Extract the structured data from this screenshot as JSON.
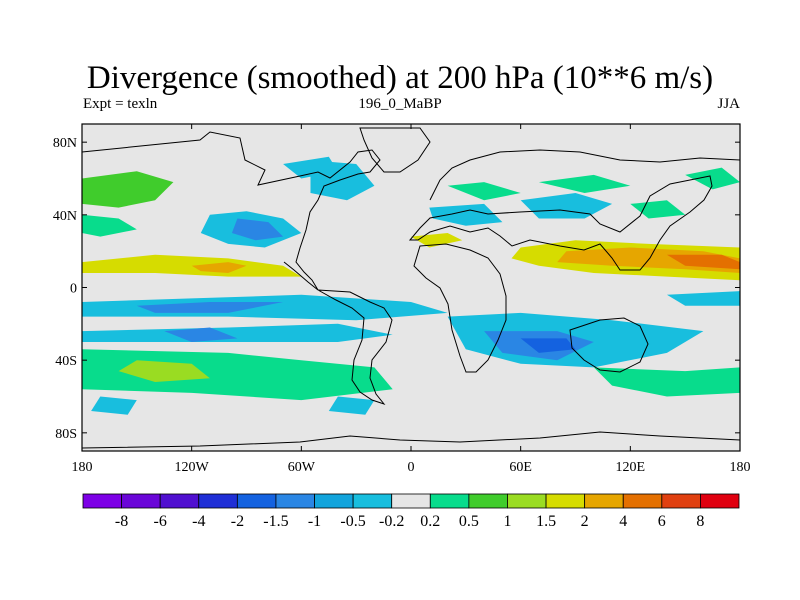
{
  "header": {
    "title": "Divergence (smoothed) at 200 hPa (10**6 m/s)",
    "left_label": "Expt = texln",
    "center_label": "196_0_MaBP",
    "right_label": "JJA"
  },
  "chart_data": {
    "type": "heatmap",
    "title": "Divergence (smoothed) at 200 hPa (10**6 m/s)",
    "projection": "cylindrical-equidistant",
    "xlim": [
      -180,
      180
    ],
    "ylim": [
      -90,
      90
    ],
    "x_ticks": [
      {
        "value": -180,
        "label": "180"
      },
      {
        "value": -120,
        "label": "120W"
      },
      {
        "value": -60,
        "label": "60W"
      },
      {
        "value": 0,
        "label": "0"
      },
      {
        "value": 60,
        "label": "60E"
      },
      {
        "value": 120,
        "label": "120E"
      },
      {
        "value": 180,
        "label": "180"
      }
    ],
    "y_ticks": [
      {
        "value": 80,
        "label": "80N"
      },
      {
        "value": 40,
        "label": "40N"
      },
      {
        "value": 0,
        "label": "0"
      },
      {
        "value": -40,
        "label": "40S"
      },
      {
        "value": -80,
        "label": "80S"
      }
    ],
    "colorbar": {
      "colors": [
        "#7d00e6",
        "#6a06d8",
        "#5010d0",
        "#1f2fd6",
        "#1462e0",
        "#2a86e4",
        "#12a4dc",
        "#18bede",
        "#e6e6e6",
        "#08dc8c",
        "#40cc2c",
        "#9adc22",
        "#d6dc00",
        "#e6a600",
        "#e47000",
        "#e04010",
        "#e00010"
      ],
      "levels": [
        "-8",
        "-6",
        "-4",
        "-2",
        "-1.5",
        "-1",
        "-0.5",
        "-0.2",
        "0.2",
        "0.5",
        "1",
        "1.5",
        "2",
        "4",
        "6",
        "8"
      ]
    },
    "features": [
      {
        "kind": "polygon",
        "bin": 12,
        "coords": [
          [
            -180,
            14
          ],
          [
            -140,
            18
          ],
          [
            -100,
            16
          ],
          [
            -70,
            12
          ],
          [
            -60,
            6
          ],
          [
            -100,
            6
          ],
          [
            -140,
            8
          ],
          [
            -180,
            8
          ]
        ]
      },
      {
        "kind": "polygon",
        "bin": 13,
        "coords": [
          [
            -120,
            12
          ],
          [
            -100,
            14
          ],
          [
            -90,
            12
          ],
          [
            -100,
            8
          ],
          [
            -115,
            9
          ]
        ]
      },
      {
        "kind": "polygon",
        "bin": 12,
        "coords": [
          [
            60,
            22
          ],
          [
            90,
            26
          ],
          [
            130,
            24
          ],
          [
            180,
            22
          ],
          [
            180,
            4
          ],
          [
            140,
            6
          ],
          [
            100,
            8
          ],
          [
            70,
            12
          ],
          [
            55,
            16
          ]
        ]
      },
      {
        "kind": "polygon",
        "bin": 13,
        "coords": [
          [
            85,
            20
          ],
          [
            120,
            22
          ],
          [
            160,
            20
          ],
          [
            180,
            16
          ],
          [
            180,
            8
          ],
          [
            150,
            10
          ],
          [
            110,
            12
          ],
          [
            80,
            14
          ]
        ]
      },
      {
        "kind": "polygon",
        "bin": 14,
        "coords": [
          [
            140,
            18
          ],
          [
            170,
            18
          ],
          [
            180,
            14
          ],
          [
            180,
            10
          ],
          [
            150,
            12
          ]
        ]
      },
      {
        "kind": "polygon",
        "bin": 12,
        "coords": [
          [
            0,
            28
          ],
          [
            20,
            30
          ],
          [
            28,
            26
          ],
          [
            10,
            22
          ]
        ]
      },
      {
        "kind": "polygon",
        "bin": 10,
        "coords": [
          [
            -180,
            60
          ],
          [
            -150,
            64
          ],
          [
            -130,
            58
          ],
          [
            -140,
            48
          ],
          [
            -160,
            44
          ],
          [
            -180,
            46
          ]
        ]
      },
      {
        "kind": "polygon",
        "bin": 9,
        "coords": [
          [
            -180,
            40
          ],
          [
            -160,
            38
          ],
          [
            -150,
            32
          ],
          [
            -170,
            28
          ],
          [
            -180,
            30
          ]
        ]
      },
      {
        "kind": "polygon",
        "bin": 9,
        "coords": [
          [
            20,
            56
          ],
          [
            40,
            58
          ],
          [
            60,
            52
          ],
          [
            40,
            48
          ]
        ]
      },
      {
        "kind": "polygon",
        "bin": 9,
        "coords": [
          [
            70,
            58
          ],
          [
            100,
            62
          ],
          [
            120,
            56
          ],
          [
            95,
            52
          ]
        ]
      },
      {
        "kind": "polygon",
        "bin": 9,
        "coords": [
          [
            120,
            46
          ],
          [
            140,
            48
          ],
          [
            150,
            40
          ],
          [
            130,
            38
          ]
        ]
      },
      {
        "kind": "polygon",
        "bin": 9,
        "coords": [
          [
            150,
            62
          ],
          [
            170,
            66
          ],
          [
            180,
            58
          ],
          [
            165,
            54
          ]
        ]
      },
      {
        "kind": "polygon",
        "bin": 7,
        "coords": [
          [
            -110,
            40
          ],
          [
            -90,
            42
          ],
          [
            -70,
            38
          ],
          [
            -60,
            30
          ],
          [
            -80,
            22
          ],
          [
            -100,
            24
          ],
          [
            -115,
            30
          ]
        ]
      },
      {
        "kind": "polygon",
        "bin": 5,
        "coords": [
          [
            -95,
            38
          ],
          [
            -78,
            36
          ],
          [
            -70,
            28
          ],
          [
            -85,
            26
          ],
          [
            -98,
            30
          ]
        ]
      },
      {
        "kind": "polygon",
        "bin": 7,
        "coords": [
          [
            -55,
            70
          ],
          [
            -30,
            68
          ],
          [
            -20,
            56
          ],
          [
            -35,
            48
          ],
          [
            -55,
            52
          ]
        ]
      },
      {
        "kind": "polygon",
        "bin": 7,
        "coords": [
          [
            -70,
            68
          ],
          [
            -45,
            72
          ],
          [
            -40,
            64
          ],
          [
            -60,
            60
          ]
        ]
      },
      {
        "kind": "polygon",
        "bin": 7,
        "coords": [
          [
            60,
            48
          ],
          [
            90,
            52
          ],
          [
            110,
            46
          ],
          [
            95,
            38
          ],
          [
            70,
            38
          ]
        ]
      },
      {
        "kind": "polygon",
        "bin": 7,
        "coords": [
          [
            10,
            44
          ],
          [
            40,
            46
          ],
          [
            50,
            36
          ],
          [
            30,
            34
          ],
          [
            12,
            38
          ]
        ]
      },
      {
        "kind": "polygon",
        "bin": 7,
        "coords": [
          [
            -180,
            -8
          ],
          [
            -120,
            -6
          ],
          [
            -60,
            -4
          ],
          [
            0,
            -8
          ],
          [
            20,
            -14
          ],
          [
            -30,
            -18
          ],
          [
            -100,
            -16
          ],
          [
            -180,
            -16
          ]
        ]
      },
      {
        "kind": "polygon",
        "bin": 5,
        "coords": [
          [
            -150,
            -10
          ],
          [
            -110,
            -8
          ],
          [
            -70,
            -8
          ],
          [
            -100,
            -14
          ],
          [
            -140,
            -14
          ]
        ]
      },
      {
        "kind": "polygon",
        "bin": 7,
        "coords": [
          [
            -180,
            -24
          ],
          [
            -100,
            -22
          ],
          [
            -40,
            -20
          ],
          [
            -10,
            -26
          ],
          [
            -40,
            -30
          ],
          [
            -120,
            -30
          ],
          [
            -180,
            -30
          ]
        ]
      },
      {
        "kind": "polygon",
        "bin": 7,
        "coords": [
          [
            20,
            -16
          ],
          [
            60,
            -14
          ],
          [
            110,
            -18
          ],
          [
            160,
            -24
          ],
          [
            140,
            -36
          ],
          [
            100,
            -44
          ],
          [
            60,
            -42
          ],
          [
            30,
            -34
          ]
        ]
      },
      {
        "kind": "polygon",
        "bin": 5,
        "coords": [
          [
            40,
            -24
          ],
          [
            80,
            -24
          ],
          [
            100,
            -30
          ],
          [
            80,
            -40
          ],
          [
            50,
            -36
          ]
        ]
      },
      {
        "kind": "polygon",
        "bin": 4,
        "coords": [
          [
            60,
            -28
          ],
          [
            85,
            -28
          ],
          [
            90,
            -34
          ],
          [
            70,
            -36
          ]
        ]
      },
      {
        "kind": "polygon",
        "bin": 7,
        "coords": [
          [
            140,
            -4
          ],
          [
            180,
            -2
          ],
          [
            180,
            -10
          ],
          [
            150,
            -10
          ]
        ]
      },
      {
        "kind": "polygon",
        "bin": 9,
        "coords": [
          [
            -180,
            -34
          ],
          [
            -100,
            -36
          ],
          [
            -60,
            -40
          ],
          [
            -20,
            -44
          ],
          [
            -10,
            -56
          ],
          [
            -60,
            -62
          ],
          [
            -120,
            -58
          ],
          [
            -180,
            -56
          ]
        ]
      },
      {
        "kind": "polygon",
        "bin": 11,
        "coords": [
          [
            -150,
            -40
          ],
          [
            -120,
            -42
          ],
          [
            -110,
            -50
          ],
          [
            -140,
            -52
          ],
          [
            -160,
            -46
          ]
        ]
      },
      {
        "kind": "polygon",
        "bin": 9,
        "coords": [
          [
            100,
            -44
          ],
          [
            150,
            -46
          ],
          [
            180,
            -44
          ],
          [
            180,
            -58
          ],
          [
            140,
            -60
          ],
          [
            110,
            -54
          ]
        ]
      },
      {
        "kind": "polygon",
        "bin": 7,
        "coords": [
          [
            -170,
            -60
          ],
          [
            -150,
            -62
          ],
          [
            -155,
            -70
          ],
          [
            -175,
            -68
          ]
        ]
      },
      {
        "kind": "polygon",
        "bin": 7,
        "coords": [
          [
            -40,
            -60
          ],
          [
            -20,
            -62
          ],
          [
            -25,
            -70
          ],
          [
            -45,
            -68
          ]
        ]
      },
      {
        "kind": "polygon",
        "bin": 5,
        "coords": [
          [
            -135,
            -24
          ],
          [
            -110,
            -22
          ],
          [
            -95,
            -28
          ],
          [
            -120,
            -30
          ]
        ]
      }
    ]
  }
}
